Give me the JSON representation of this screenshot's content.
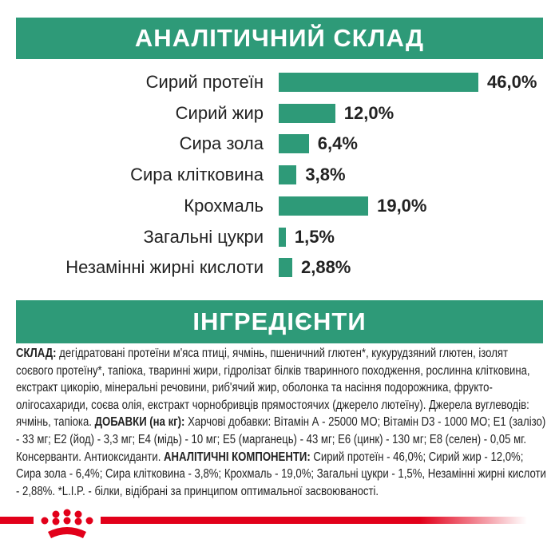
{
  "header1": "АНАЛІТИЧНИЙ СКЛАД",
  "header2": "ІНГРЕДІЄНТИ",
  "chart_data": {
    "type": "bar",
    "orientation": "horizontal",
    "categories": [
      "Сирий протеїн",
      "Сирий жир",
      "Сира зола",
      "Сира клітковина",
      "Крохмаль",
      "Загальні цукри",
      "Незамінні жирні кислоти"
    ],
    "values": [
      46.0,
      12.0,
      6.4,
      3.8,
      19.0,
      1.5,
      2.88
    ],
    "labels": [
      "46,0%",
      "12,0%",
      "6,4%",
      "3,8%",
      "19,0%",
      "1,5%",
      "2,88%"
    ],
    "color": "#2e9a78"
  },
  "ingredients": [
    {
      "b": "СКЛАД:",
      "t": " дегідратовані протеїни м'яса птиці, ячмінь, пшеничний глютен*, кукурудзяний глютен, ізолят соєвого протеїну*, тапіока, тваринні жири, гідролізат білків тваринного походження, рослинна клітковина, екстракт цикорію, мінеральні речовини, риб'ячий жир, оболонка та насіння подорожника, фрукто-олігосахариди, соєва олія, екстракт чорнобривців прямостоячих (джерело лютеїну). Джерела вуглеводів: ячмінь, тапіока. "
    },
    {
      "b": "ДОБАВКИ (на кг):",
      "t": " Харчові добавки: Вітамін А - 25000 МО; Вітамін D3 - 1000 МО; Е1 (залізо) - 33 мг; Е2 (йод) - 3,3 мг; Е4 (мідь) - 10 мг; Е5 (марганець) - 43 мг; Е6 (цинк) - 130 мг; Е8 (селен) - 0,05 мг. Консерванти. Антиоксиданти. "
    },
    {
      "b": "АНАЛІТИЧНІ КОМПОНЕНТИ:",
      "t": " Сирий протеїн - 46,0%; Сирий жир - 12,0%; Сира зола - 6,4%; Сира клітковина - 3,8%; Крохмаль - 19,0%; Загальні цукри - 1,5%, Незамінні жирні кислоти - 2,88%. *L.I.P. - білки, відібрані за принципом оптимальної засвоюваності."
    }
  ],
  "logo": "Royal Canin crown",
  "brand_color": "#e2001a"
}
